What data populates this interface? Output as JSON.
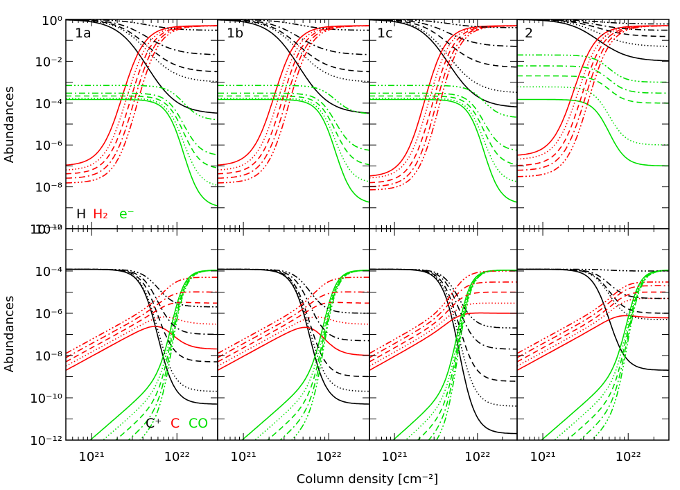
{
  "figure": {
    "xlabel": "Column density [cm⁻²]",
    "ylabel_top": "Abundances",
    "ylabel_bottom": "Abundances",
    "legend_top": [
      {
        "label": "H",
        "color": "#000000"
      },
      {
        "label": "H₂",
        "color": "#ff0000"
      },
      {
        "label": "e⁻",
        "color": "#00e000"
      }
    ],
    "legend_bottom": [
      {
        "label": "C⁺",
        "color": "#000000"
      },
      {
        "label": "C",
        "color": "#ff0000"
      },
      {
        "label": "CO",
        "color": "#00e000"
      }
    ]
  },
  "chart_data": {
    "type": "line",
    "x_scale": "log",
    "y_scale": "log",
    "xlim": [
      5e+20,
      3e+22
    ],
    "x_ticks": [
      "10²¹",
      "10²²"
    ],
    "rows": [
      {
        "ylim": [
          1e-10,
          1
        ],
        "y_ticks": [
          "10⁰",
          "10⁻²",
          "10⁻⁴",
          "10⁻⁶",
          "10⁻⁸",
          "10⁻¹⁰"
        ],
        "species": [
          {
            "name": "H",
            "color": "#000000",
            "mid": 4e+21,
            "lo": 1,
            "width": 0.22
          },
          {
            "name": "H₂",
            "color": "#ff0000",
            "mid": 2.2e+21,
            "hi": 0.5,
            "width": 0.12
          },
          {
            "name": "e⁻",
            "color": "#00e000",
            "mid": 1.2e+22,
            "hi": 0.00015,
            "width": 0.1
          }
        ],
        "panels": [
          {
            "label": "1a",
            "H_final": [
              3e-05,
              0.001,
              0.003,
              0.02,
              0.3
            ],
            "H2_initial": [
              1e-07,
              6e-08,
              4e-08,
              2.5e-08,
              1.5e-08
            ],
            "e_initial": [
              0.00015,
              0.00017,
              0.00022,
              0.0003,
              0.0007
            ],
            "e_final": [
              1e-09,
              1e-08,
              7e-08,
              3e-07,
              1.5e-05
            ]
          },
          {
            "label": "1b",
            "H_final": [
              3e-05,
              0.001,
              0.003,
              0.02,
              0.3
            ],
            "H2_initial": [
              1e-07,
              6e-08,
              4e-08,
              2.5e-08,
              1.5e-08
            ],
            "e_initial": [
              0.00015,
              0.00017,
              0.00022,
              0.0003,
              0.0007
            ],
            "e_final": [
              1.5e-09,
              1.5e-08,
              1e-07,
              5e-07,
              3e-05
            ]
          },
          {
            "label": "1c",
            "H_final": [
              6e-05,
              0.0003,
              0.005,
              0.05,
              0.4
            ],
            "H2_initial": [
              3e-08,
              2.5e-08,
              1.5e-08,
              1e-08,
              7e-09
            ],
            "e_initial": [
              0.00015,
              0.00017,
              0.00022,
              0.0003,
              0.0007
            ],
            "e_final": [
              1.5e-09,
              1.5e-08,
              1e-07,
              5e-07,
              2e-05
            ]
          },
          {
            "label": "2",
            "H_final": [
              0.01,
              0.05,
              0.15,
              0.3,
              0.6
            ],
            "H2_initial": [
              3e-07,
              2e-07,
              1e-07,
              6e-08,
              3e-08
            ],
            "e_initial": [
              0.00015,
              0.0006,
              0.002,
              0.006,
              0.02
            ],
            "e_final": [
              1e-07,
              1e-06,
              0.0001,
              0.0003,
              0.001
            ]
          }
        ]
      },
      {
        "ylim": [
          1e-12,
          0.01
        ],
        "y_ticks": [
          "10⁻²",
          "10⁻⁴",
          "10⁻⁶",
          "10⁻⁸",
          "10⁻¹⁰",
          "10⁻¹²"
        ],
        "species": [
          {
            "name": "C⁺",
            "color": "#000000"
          },
          {
            "name": "C",
            "color": "#ff0000"
          },
          {
            "name": "CO",
            "color": "#00e000"
          }
        ],
        "panels": [
          {
            "label": "",
            "Cp_final": [
              5e-11,
              2e-10,
              5e-09,
              1e-07,
              2e-06
            ],
            "C_peak_x": 8e+21,
            "C_final": [
              2e-08,
              3e-07,
              3e-06,
              1e-05,
              5e-05
            ],
            "CO_rise_x": 9e+21
          },
          {
            "label": "",
            "Cp_final": [
              5e-11,
              2e-10,
              1e-09,
              5e-08,
              1e-06
            ],
            "C_peak_x": 8e+21,
            "C_final": [
              1e-08,
              3e-07,
              3e-06,
              1e-05,
              5e-05
            ],
            "CO_rise_x": 9e+21
          },
          {
            "label": "",
            "Cp_final": [
              2e-12,
              4e-11,
              6e-10,
              2e-08,
              2e-07
            ],
            "C_peak_x": 5.5e+21,
            "C_final": [
              1e-06,
              3e-06,
              1e-05,
              3e-05,
              0.0001
            ],
            "CO_rise_x": 6e+21
          },
          {
            "label": "",
            "Cp_final": [
              2e-09,
              5e-07,
              1e-06,
              5e-06,
              0.0001
            ],
            "C_peak_x": 8e+21,
            "C_final": [
              6e-07,
              5e-06,
              1e-05,
              2e-05,
              3e-05
            ],
            "CO_rise_x": 1e+22
          }
        ]
      }
    ],
    "line_styles": [
      "solid",
      "dotted",
      "dashed",
      "dashdot",
      "dashdotdotdot"
    ]
  }
}
